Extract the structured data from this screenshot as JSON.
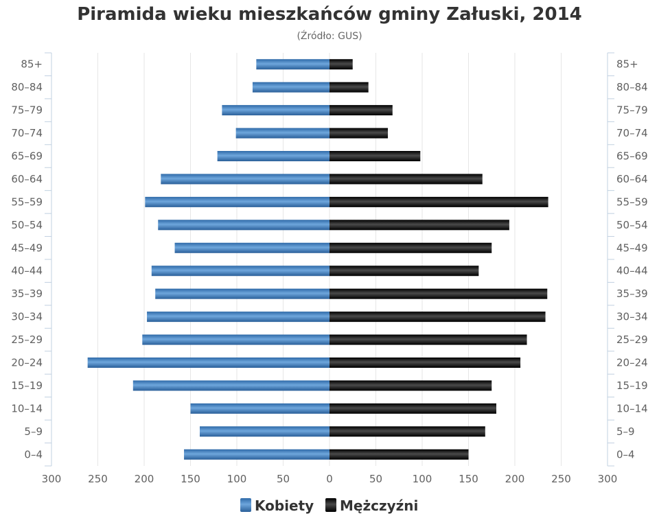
{
  "chart_data": {
    "type": "bar",
    "orientation": "horizontal",
    "title": "Piramida wieku mieszkańców gminy Załuski, 2014",
    "subtitle": "(Źródło: GUS)",
    "categories": [
      "0-4",
      "5-9",
      "10-14",
      "15-19",
      "20-24",
      "25-29",
      "30-34",
      "35-39",
      "40-44",
      "45-49",
      "50-54",
      "55-59",
      "60-64",
      "65-69",
      "70-74",
      "75-79",
      "80-84",
      "85+"
    ],
    "category_tick_labels": [
      "0–4",
      "5–9",
      "10–14",
      "15–19",
      "20–24",
      "25–29",
      "30–34",
      "35–39",
      "40–44",
      "45–49",
      "50–54",
      "55–59",
      "60–64",
      "65–69",
      "70–74",
      "75–79",
      "80–84",
      "85+"
    ],
    "series": [
      {
        "name": "Kobiety",
        "color": "#3f7fbf",
        "side": "left",
        "values": [
          157,
          140,
          150,
          212,
          261,
          202,
          197,
          188,
          192,
          167,
          185,
          199,
          182,
          121,
          101,
          116,
          83,
          79
        ]
      },
      {
        "name": "Mężczyźni",
        "color": "#1a1a1a",
        "side": "right",
        "values": [
          150,
          168,
          180,
          175,
          206,
          213,
          233,
          235,
          161,
          175,
          194,
          236,
          165,
          98,
          63,
          68,
          42,
          25
        ]
      }
    ],
    "xlim": [
      -300,
      300
    ],
    "x_ticks": [
      -300,
      -250,
      -200,
      -150,
      -100,
      -50,
      0,
      50,
      100,
      150,
      200,
      250,
      300
    ],
    "x_tick_labels": [
      "300",
      "250",
      "200",
      "150",
      "100",
      "50",
      "0",
      "50",
      "100",
      "150",
      "200",
      "250",
      "300"
    ],
    "grid": "vertical",
    "legend_position": "bottom-center"
  }
}
